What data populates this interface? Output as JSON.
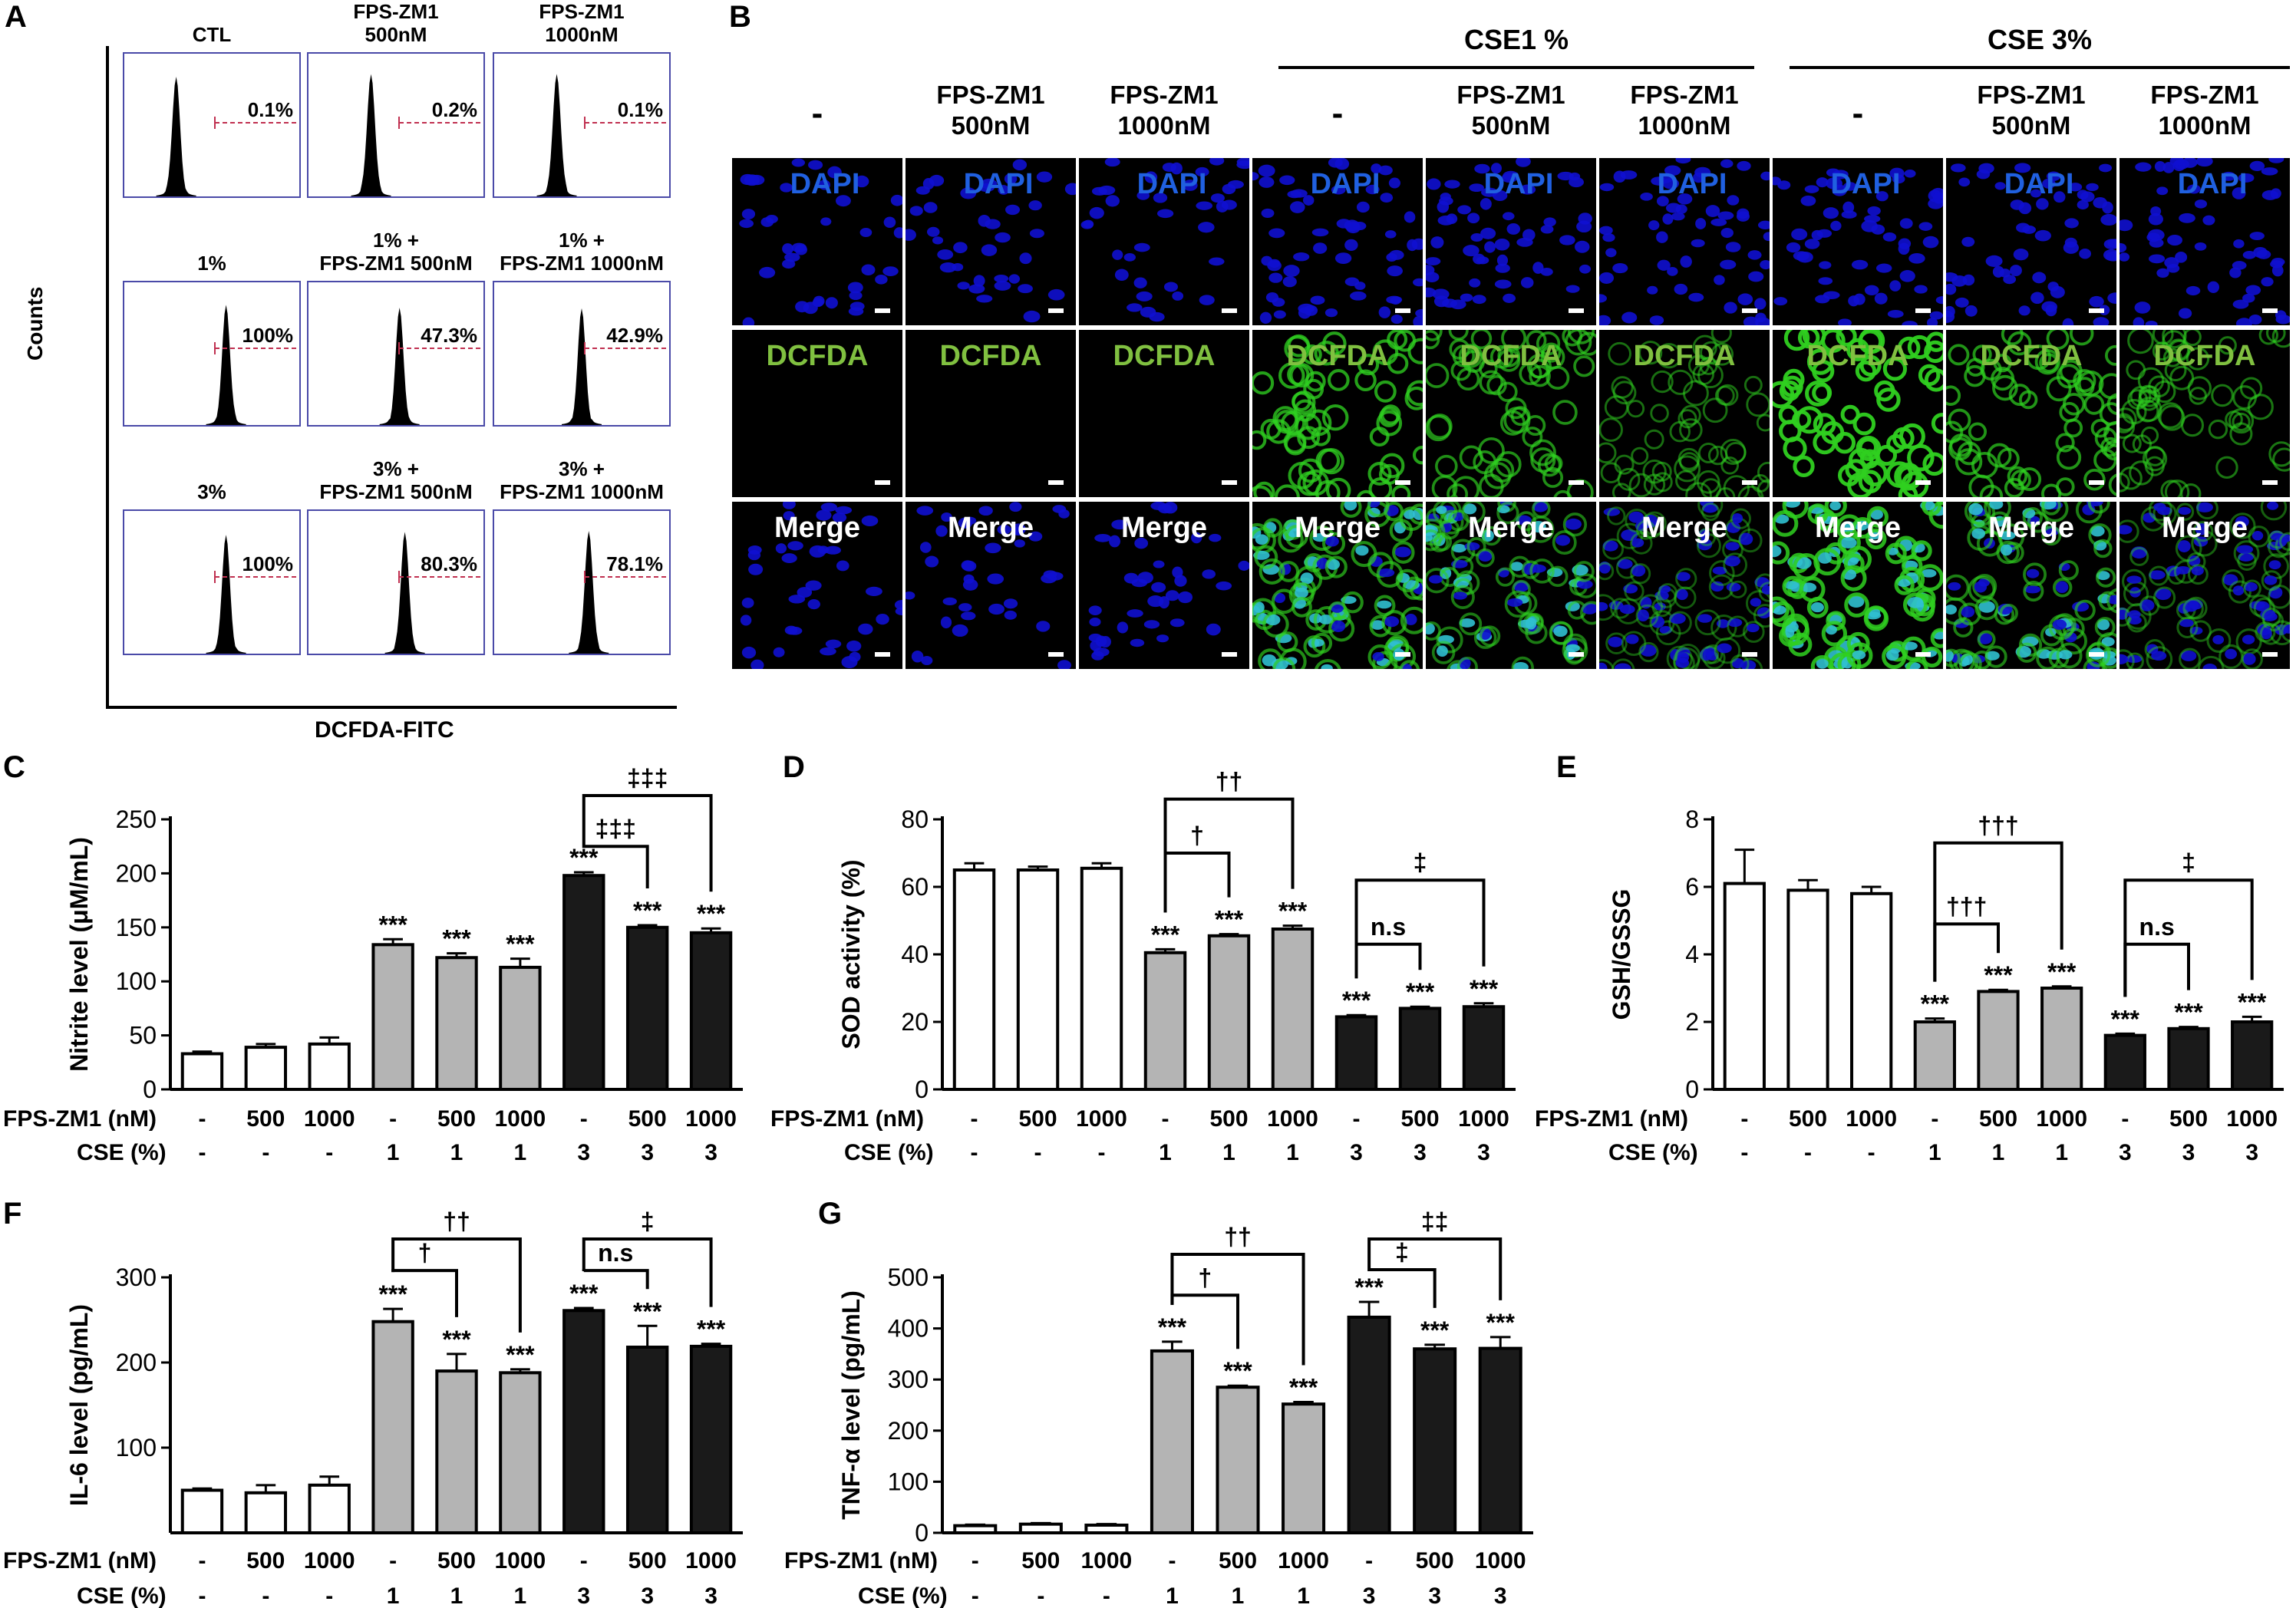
{
  "panel_letters": {
    "A": "A",
    "B": "B",
    "C": "C",
    "D": "D",
    "E": "E",
    "F": "F",
    "G": "G"
  },
  "flow": {
    "ylabel": "Counts",
    "xlabel": "DCFDA-FITC",
    "panels": [
      {
        "title": "CTL",
        "pct": "0.1%",
        "peak": 0.3
      },
      {
        "title": "FPS-ZM1\n500nM",
        "pct": "0.2%",
        "peak": 0.36
      },
      {
        "title": "FPS-ZM1\n1000nM",
        "pct": "0.1%",
        "peak": 0.36
      },
      {
        "title": "1%",
        "pct": "100%",
        "peak": 0.58
      },
      {
        "title": "1% +\nFPS-ZM1 500nM",
        "pct": "47.3%",
        "peak": 0.52
      },
      {
        "title": "1% +\nFPS-ZM1 1000nM",
        "pct": "42.9%",
        "peak": 0.5
      },
      {
        "title": "3%",
        "pct": "100%",
        "peak": 0.58
      },
      {
        "title": "3% +\nFPS-ZM1 500nM",
        "pct": "80.3%",
        "peak": 0.55
      },
      {
        "title": "3% +\nFPS-ZM1 1000nM",
        "pct": "78.1%",
        "peak": 0.54
      }
    ]
  },
  "microscopy": {
    "group_headers": [
      "CSE1 %",
      "CSE 3%"
    ],
    "columns": [
      "-",
      "FPS-ZM1\n500nM",
      "FPS-ZM1\n1000nM",
      "-",
      "FPS-ZM1\n500nM",
      "FPS-ZM1\n1000nM",
      "-",
      "FPS-ZM1\n500nM",
      "FPS-ZM1\n1000nM"
    ],
    "row_labels": [
      "DAPI",
      "DCFDA",
      "Merge"
    ],
    "green_intensity": [
      0,
      0,
      0,
      0.7,
      0.55,
      0.3,
      1.0,
      0.6,
      0.35
    ],
    "colors": {
      "dapi": "#1010d0",
      "dcfda": "#2fd020",
      "label_blue": "#2060e0",
      "label_green": "#80c040"
    }
  },
  "treatment_rows": {
    "fps_label": "FPS-ZM1 (nM)",
    "cse_label": "CSE (%)",
    "fps": [
      "-",
      "500",
      "1000",
      "-",
      "500",
      "1000",
      "-",
      "500",
      "1000"
    ],
    "cse": [
      "-",
      "-",
      "-",
      "1",
      "1",
      "1",
      "3",
      "3",
      "3"
    ]
  },
  "bar_colors": [
    "#ffffff",
    "#ffffff",
    "#ffffff",
    "#b4b4b4",
    "#b4b4b4",
    "#b4b4b4",
    "#1a1a1a",
    "#1a1a1a",
    "#1a1a1a"
  ],
  "chart_data": [
    {
      "type": "bar",
      "panel": "C",
      "ylabel": "Nitrite level (μM/mL)",
      "ylim": [
        0,
        250
      ],
      "yticks": [
        "0",
        "50",
        "100",
        "150",
        "200",
        "250"
      ],
      "categories": [
        "1",
        "2",
        "3",
        "4",
        "5",
        "6",
        "7",
        "8",
        "9"
      ],
      "values": [
        33,
        39,
        42,
        134,
        122,
        113,
        198,
        150,
        145
      ],
      "errors": [
        2,
        3,
        6,
        5,
        4,
        8,
        3,
        2,
        4
      ],
      "stars": [
        "",
        "",
        "",
        "***",
        "***",
        "***",
        "***",
        "***",
        "***"
      ],
      "brackets": [
        {
          "from": 6,
          "to": 7,
          "label": "‡‡‡",
          "level": 225
        },
        {
          "from": 6,
          "to": 8,
          "label": "‡‡‡",
          "level": 272
        }
      ]
    },
    {
      "type": "bar",
      "panel": "D",
      "ylabel": "SOD activity (%)",
      "ylim": [
        0,
        80
      ],
      "yticks": [
        "0",
        "20",
        "40",
        "60",
        "80"
      ],
      "categories": [
        "1",
        "2",
        "3",
        "4",
        "5",
        "6",
        "7",
        "8",
        "9"
      ],
      "values": [
        65,
        65,
        65.5,
        40.5,
        45.5,
        47.5,
        21.5,
        24,
        24.5
      ],
      "errors": [
        2,
        1,
        1.5,
        1,
        0.5,
        1,
        0.5,
        0.5,
        1
      ],
      "stars": [
        "",
        "",
        "",
        "***",
        "***",
        "***",
        "***",
        "***",
        "***"
      ],
      "brackets": [
        {
          "from": 3,
          "to": 4,
          "label": "†",
          "level": 70
        },
        {
          "from": 3,
          "to": 5,
          "label": "††",
          "level": 86
        },
        {
          "from": 6,
          "to": 7,
          "label": "n.s",
          "level": 43
        },
        {
          "from": 6,
          "to": 8,
          "label": "‡",
          "level": 62
        }
      ]
    },
    {
      "type": "bar",
      "panel": "E",
      "ylabel": "GSH/GSSG",
      "ylim": [
        0,
        8
      ],
      "yticks": [
        "0",
        "2",
        "4",
        "6",
        "8"
      ],
      "categories": [
        "1",
        "2",
        "3",
        "4",
        "5",
        "6",
        "7",
        "8",
        "9"
      ],
      "values": [
        6.1,
        5.9,
        5.8,
        2.0,
        2.9,
        3.0,
        1.6,
        1.8,
        2.0
      ],
      "errors": [
        1.0,
        0.3,
        0.2,
        0.1,
        0.05,
        0.05,
        0.05,
        0.05,
        0.15
      ],
      "stars": [
        "",
        "",
        "",
        "***",
        "***",
        "***",
        "***",
        "***",
        "***"
      ],
      "brackets": [
        {
          "from": 3,
          "to": 4,
          "label": "†††",
          "level": 4.9
        },
        {
          "from": 3,
          "to": 5,
          "label": "†††",
          "level": 7.3
        },
        {
          "from": 6,
          "to": 7,
          "label": "n.s",
          "level": 4.3
        },
        {
          "from": 6,
          "to": 8,
          "label": "‡",
          "level": 6.2
        }
      ]
    },
    {
      "type": "bar",
      "panel": "F",
      "ylabel": "IL-6 level (pg/mL)",
      "ylim": [
        0,
        300
      ],
      "yticks": [
        "100",
        "200",
        "300"
      ],
      "categories": [
        "1",
        "2",
        "3",
        "4",
        "5",
        "6",
        "7",
        "8",
        "9"
      ],
      "values": [
        50,
        47,
        56,
        248,
        190,
        188,
        261,
        218,
        219
      ],
      "errors": [
        2,
        9,
        10,
        15,
        20,
        4,
        3,
        25,
        3
      ],
      "stars": [
        "",
        "",
        "",
        "***",
        "***",
        "***",
        "***",
        "***",
        "***"
      ],
      "brackets": [
        {
          "from": 3,
          "to": 4,
          "label": "†",
          "level": 308
        },
        {
          "from": 3,
          "to": 5,
          "label": "††",
          "level": 345
        },
        {
          "from": 6,
          "to": 7,
          "label": "n.s",
          "level": 308
        },
        {
          "from": 6,
          "to": 8,
          "label": "‡",
          "level": 345
        }
      ]
    },
    {
      "type": "bar",
      "panel": "G",
      "ylabel": "TNF-α level (pg/mL)",
      "ylim": [
        0,
        500
      ],
      "yticks": [
        "0",
        "100",
        "200",
        "300",
        "400",
        "500"
      ],
      "categories": [
        "1",
        "2",
        "3",
        "4",
        "5",
        "6",
        "7",
        "8",
        "9"
      ],
      "values": [
        14,
        17,
        15,
        356,
        285,
        252,
        422,
        360,
        361
      ],
      "errors": [
        2,
        2,
        2,
        18,
        3,
        4,
        30,
        8,
        22
      ],
      "stars": [
        "",
        "",
        "",
        "***",
        "***",
        "***",
        "***",
        "***",
        "***"
      ],
      "brackets": [
        {
          "from": 3,
          "to": 4,
          "label": "†",
          "level": 465
        },
        {
          "from": 3,
          "to": 5,
          "label": "††",
          "level": 545
        },
        {
          "from": 6,
          "to": 7,
          "label": "‡",
          "level": 515
        },
        {
          "from": 6,
          "to": 8,
          "label": "‡‡",
          "level": 575
        }
      ]
    }
  ]
}
